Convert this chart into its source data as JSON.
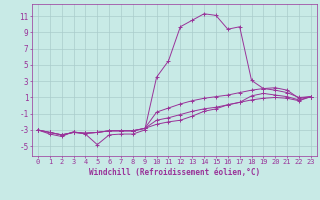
{
  "xlabel": "Windchill (Refroidissement éolien,°C)",
  "background_color": "#c8eae6",
  "grid_color": "#aacccc",
  "line_color": "#993399",
  "xlim": [
    -0.5,
    23.5
  ],
  "ylim": [
    -6.2,
    12.5
  ],
  "yticks": [
    -5,
    -3,
    -1,
    1,
    3,
    5,
    7,
    9,
    11
  ],
  "xticks": [
    0,
    1,
    2,
    3,
    4,
    5,
    6,
    7,
    8,
    9,
    10,
    11,
    12,
    13,
    14,
    15,
    16,
    17,
    18,
    19,
    20,
    21,
    22,
    23
  ],
  "hours": [
    0,
    1,
    2,
    3,
    4,
    5,
    6,
    7,
    8,
    9,
    10,
    11,
    12,
    13,
    14,
    15,
    16,
    17,
    18,
    19,
    20,
    21,
    22,
    23
  ],
  "temp": [
    -3.0,
    -3.5,
    -3.8,
    -3.2,
    -3.5,
    -4.8,
    -3.6,
    -3.5,
    -3.5,
    -3.0,
    3.5,
    5.5,
    9.7,
    10.5,
    11.3,
    11.1,
    9.4,
    9.7,
    3.1,
    2.1,
    1.9,
    1.6,
    1.0,
    1.1
  ],
  "line2": [
    -3.0,
    -3.3,
    -3.6,
    -3.3,
    -3.4,
    -3.3,
    -3.1,
    -3.1,
    -3.1,
    -2.8,
    -0.8,
    -0.3,
    0.2,
    0.6,
    0.9,
    1.1,
    1.3,
    1.6,
    1.9,
    2.1,
    2.2,
    1.9,
    0.9,
    1.1
  ],
  "line3": [
    -3.0,
    -3.3,
    -3.6,
    -3.3,
    -3.4,
    -3.3,
    -3.1,
    -3.1,
    -3.1,
    -2.8,
    -1.8,
    -1.5,
    -1.1,
    -0.7,
    -0.4,
    -0.2,
    0.1,
    0.4,
    1.2,
    1.5,
    1.3,
    1.1,
    0.7,
    1.1
  ],
  "line4": [
    -3.0,
    -3.3,
    -3.6,
    -3.3,
    -3.4,
    -3.3,
    -3.1,
    -3.1,
    -3.1,
    -2.8,
    -2.3,
    -2.0,
    -1.8,
    -1.3,
    -0.7,
    -0.4,
    0.1,
    0.4,
    0.7,
    0.9,
    1.0,
    0.9,
    0.6,
    1.1
  ],
  "xlabel_fontsize": 5.5,
  "tick_fontsize": 5.0,
  "ytick_fontsize": 5.5
}
